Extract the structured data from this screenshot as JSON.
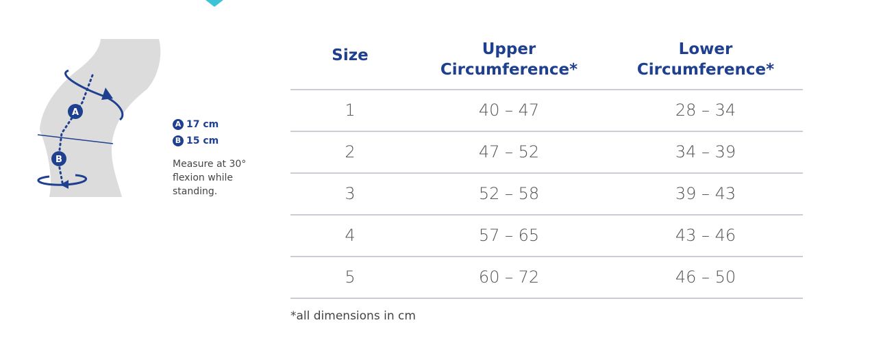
{
  "legend": [
    {
      "letter": "A",
      "value": "17 cm"
    },
    {
      "letter": "B",
      "value": "15 cm"
    }
  ],
  "note": "Measure at 30° flexion while standing.",
  "table": {
    "headers": [
      "Size",
      "Upper Circumference*",
      "Lower Circumference*"
    ],
    "rows": [
      [
        "1",
        "40 – 47",
        "28 – 34"
      ],
      [
        "2",
        "47 – 52",
        "34 – 39"
      ],
      [
        "3",
        "52 – 58",
        "39 – 43"
      ],
      [
        "4",
        "57 – 65",
        "43 – 46"
      ],
      [
        "5",
        "60 – 72",
        "46 – 50"
      ]
    ]
  },
  "footnote": "*all dimensions in cm"
}
